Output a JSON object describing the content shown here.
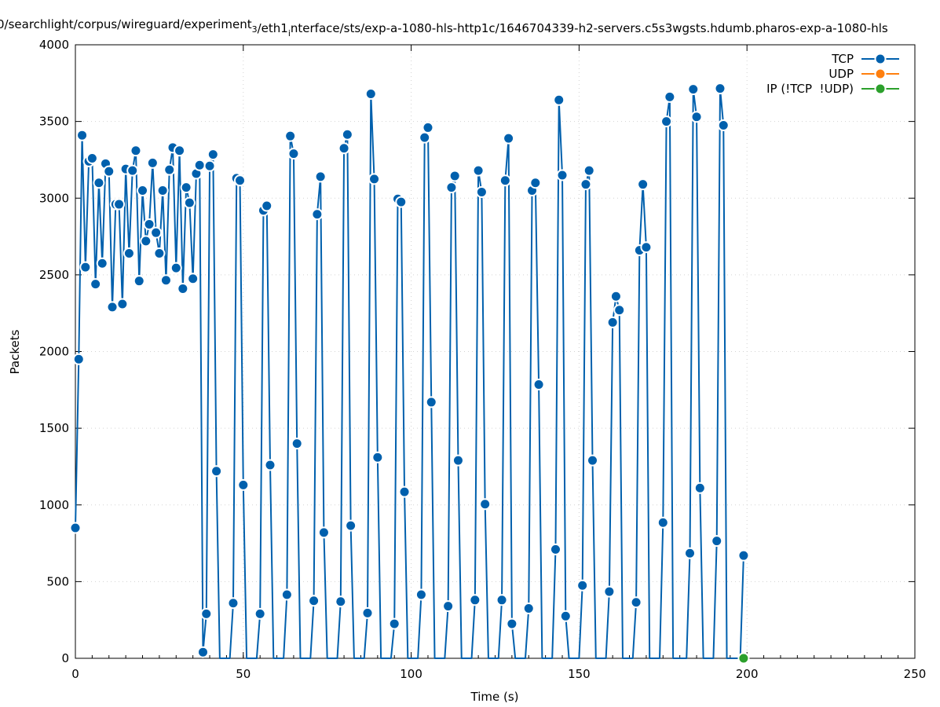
{
  "chart_data": {
    "type": "line",
    "title": "0/searchlight/corpus/wireguard/experiment_3/eth1_interface/sts/exp-a-1080-hls-http1c/1646704339-h2-servers.c5s3wgsts.hdumb.pharos-exp-a-1080-hls",
    "xlabel": "Time (s)",
    "ylabel": "Packets",
    "xlim": [
      0,
      250
    ],
    "ylim": [
      0,
      4000
    ],
    "x_ticks": [
      "0",
      "50",
      "100",
      "150",
      "200",
      "250"
    ],
    "y_ticks": [
      "0",
      "500",
      "1000",
      "1500",
      "2000",
      "2500",
      "3000",
      "3500",
      "4000"
    ],
    "grid": true,
    "legend_position": "top-right",
    "series": [
      {
        "name": "TCP",
        "color": "#0060ad",
        "points": [
          [
            0,
            850
          ],
          [
            1,
            1950
          ],
          [
            2,
            3410
          ],
          [
            3,
            2550
          ],
          [
            4,
            3240
          ],
          [
            5,
            3260
          ],
          [
            6,
            2440
          ],
          [
            7,
            3100
          ],
          [
            8,
            2575
          ],
          [
            9,
            3225
          ],
          [
            10,
            3175
          ],
          [
            11,
            2290
          ],
          [
            12,
            2960
          ],
          [
            13,
            2960
          ],
          [
            14,
            2310
          ],
          [
            15,
            3190
          ],
          [
            16,
            2640
          ],
          [
            17,
            3180
          ],
          [
            18,
            3310
          ],
          [
            19,
            2460
          ],
          [
            20,
            3050
          ],
          [
            21,
            2720
          ],
          [
            22,
            2830
          ],
          [
            23,
            3230
          ],
          [
            24,
            2775
          ],
          [
            25,
            2640
          ],
          [
            26,
            3050
          ],
          [
            27,
            2465
          ],
          [
            28,
            3185
          ],
          [
            29,
            3330
          ],
          [
            30,
            2545
          ],
          [
            31,
            3310
          ],
          [
            32,
            2410
          ],
          [
            33,
            3070
          ],
          [
            34,
            2970
          ],
          [
            35,
            2475
          ],
          [
            36,
            3160
          ],
          [
            37,
            3215
          ],
          [
            38,
            40
          ],
          [
            39,
            290
          ],
          [
            40,
            3210
          ],
          [
            41,
            3285
          ],
          [
            42,
            1220
          ],
          [
            47,
            360
          ],
          [
            48,
            3130
          ],
          [
            49,
            3115
          ],
          [
            50,
            1130
          ],
          [
            55,
            290
          ],
          [
            56,
            2920
          ],
          [
            57,
            2950
          ],
          [
            58,
            1260
          ],
          [
            63,
            415
          ],
          [
            64,
            3405
          ],
          [
            65,
            3290
          ],
          [
            66,
            1400
          ],
          [
            71,
            375
          ],
          [
            72,
            2895
          ],
          [
            73,
            3140
          ],
          [
            74,
            820
          ],
          [
            79,
            370
          ],
          [
            80,
            3325
          ],
          [
            81,
            3415
          ],
          [
            82,
            865
          ],
          [
            87,
            295
          ],
          [
            88,
            3680
          ],
          [
            89,
            3125
          ],
          [
            90,
            1310
          ],
          [
            95,
            225
          ],
          [
            96,
            2995
          ],
          [
            97,
            2975
          ],
          [
            98,
            1085
          ],
          [
            103,
            415
          ],
          [
            104,
            3395
          ],
          [
            105,
            3460
          ],
          [
            106,
            1670
          ],
          [
            111,
            340
          ],
          [
            112,
            3070
          ],
          [
            113,
            3145
          ],
          [
            114,
            1290
          ],
          [
            119,
            380
          ],
          [
            120,
            3180
          ],
          [
            121,
            3040
          ],
          [
            122,
            1005
          ],
          [
            127,
            380
          ],
          [
            128,
            3115
          ],
          [
            129,
            3390
          ],
          [
            130,
            225
          ],
          [
            135,
            325
          ],
          [
            136,
            3050
          ],
          [
            137,
            3100
          ],
          [
            138,
            1785
          ],
          [
            143,
            710
          ],
          [
            144,
            3640
          ],
          [
            145,
            3150
          ],
          [
            146,
            275
          ],
          [
            151,
            475
          ],
          [
            152,
            3090
          ],
          [
            153,
            3180
          ],
          [
            154,
            1290
          ],
          [
            159,
            435
          ],
          [
            160,
            2190
          ],
          [
            161,
            2360
          ],
          [
            162,
            2270
          ],
          [
            167,
            365
          ],
          [
            168,
            2660
          ],
          [
            169,
            3090
          ],
          [
            170,
            2680
          ],
          [
            175,
            885
          ],
          [
            176,
            3500
          ],
          [
            177,
            3660
          ],
          [
            183,
            685
          ],
          [
            184,
            3710
          ],
          [
            185,
            3530
          ],
          [
            186,
            1110
          ],
          [
            191,
            765
          ],
          [
            192,
            3715
          ],
          [
            193,
            3475
          ],
          [
            199,
            670
          ]
        ]
      },
      {
        "name": "UDP",
        "color": "#ff7f0e",
        "points": []
      },
      {
        "name": "IP (!TCP  !UDP)",
        "color": "#2ca02c",
        "points": [
          [
            199,
            0
          ]
        ]
      }
    ]
  }
}
